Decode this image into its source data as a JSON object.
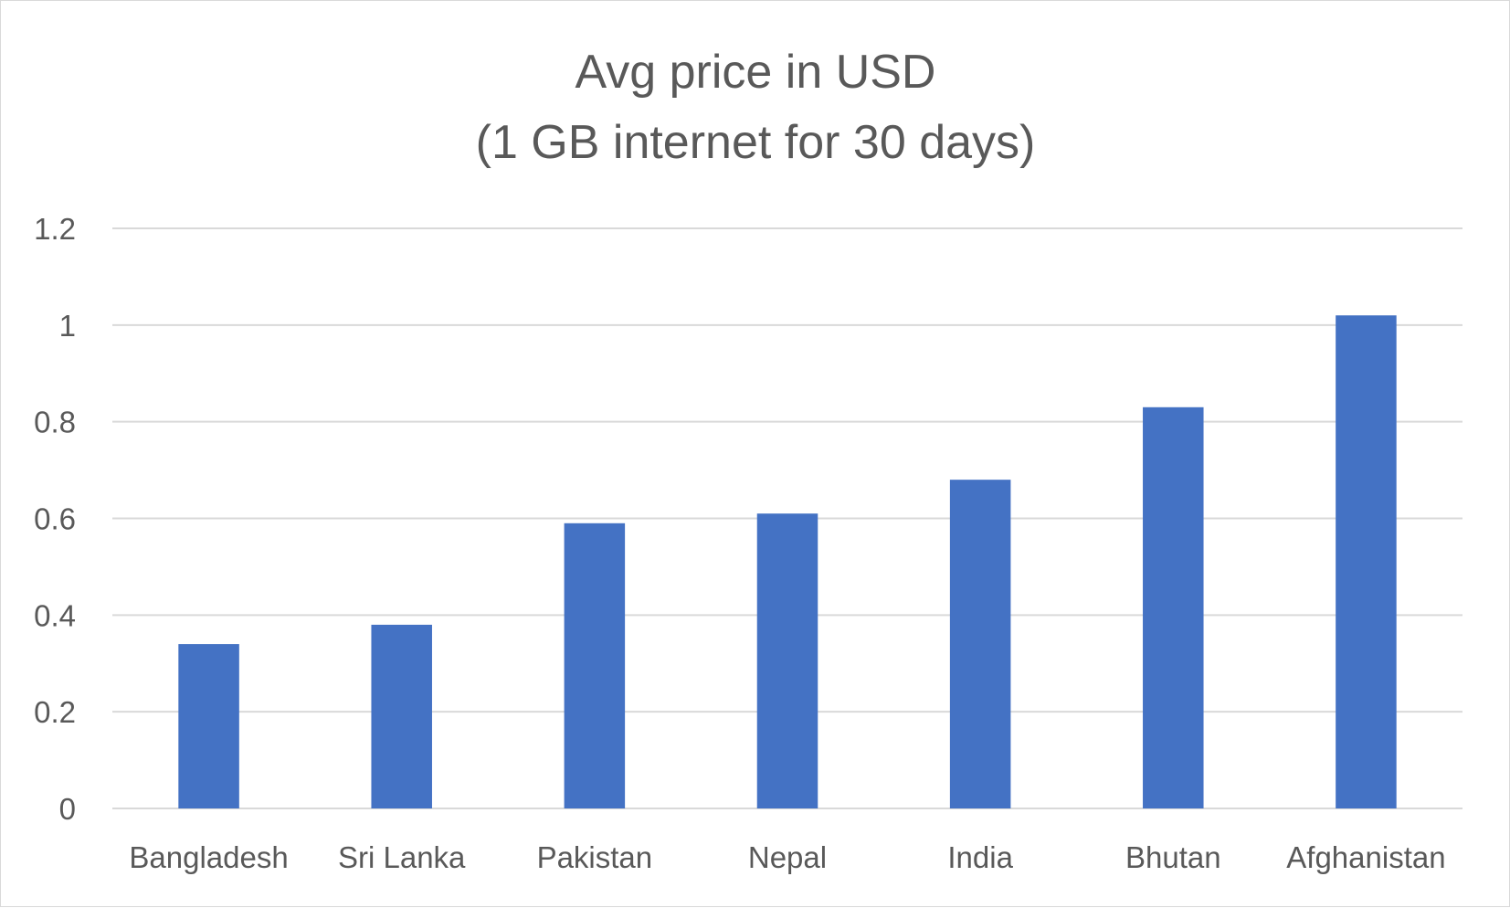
{
  "chart_data": {
    "type": "bar",
    "title": "Avg price in USD",
    "subtitle": "(1 GB internet for 30 days)",
    "categories": [
      "Bangladesh",
      "Sri Lanka",
      "Pakistan",
      "Nepal",
      "India",
      "Bhutan",
      "Afghanistan"
    ],
    "values": [
      0.34,
      0.38,
      0.59,
      0.61,
      0.68,
      0.83,
      1.02
    ],
    "yticks": [
      "0",
      "0.2",
      "0.4",
      "0.6",
      "0.8",
      "1",
      "1.2"
    ],
    "ylim": [
      0,
      1.2
    ],
    "grid": true,
    "legend": "none",
    "bar_color": "#4472c4"
  }
}
